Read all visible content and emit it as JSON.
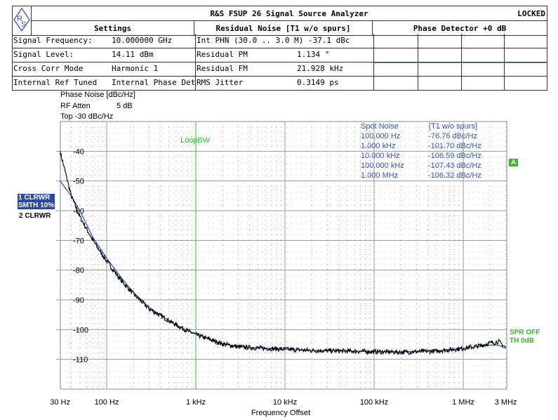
{
  "header": {
    "title": "R&S FSUP 26 Signal Source Analyzer",
    "status": "LOCKED",
    "logo": "R&S",
    "settings_title": "Settings",
    "residual_title": "Residual Noise [T1 w/o spurs]",
    "phase_title": "Phase Detector +0 dB",
    "rows": [
      {
        "label": "Signal Frequency:",
        "value": "10.000000 GHz",
        "rlabel": "Int PHN (30.0  .. 3.0 M)  -37.1 dBc",
        "rvalue": ""
      },
      {
        "label": "Signal Level:",
        "value": "14.11 dBm",
        "rlabel": "Residual PM",
        "rvalue": "1.134 °"
      },
      {
        "label": "Cross Corr Mode",
        "value": "Harmonic 1",
        "rlabel": "Residual FM",
        "rvalue": "21.928 kHz"
      },
      {
        "label": "Internal Ref Tuned",
        "value": "Internal Phase Det",
        "rlabel": "RMS Jitter",
        "rvalue": "0.3149 ps"
      }
    ]
  },
  "info": {
    "unit": "Phase Noise [dBc/Hz]",
    "rf_atten_label": "RF Atten",
    "rf_atten": "5 dB",
    "top": "Top  -30 dBc/Hz"
  },
  "traces": {
    "t1": "1 CLRWR",
    "t1b": "SMTH 10%",
    "t2": "2 CLRWR"
  },
  "flags": {
    "a": "A",
    "spr": "SPR OFF",
    "th": "TH 0dB"
  },
  "spot": {
    "title": "Spot Noise",
    "title2": "[T1 w/o spurs]",
    "rows": [
      {
        "f": "100.000 Hz",
        "v": "-76.76 dBc/Hz"
      },
      {
        "f": "1.000 kHz",
        "v": "-101.70 dBc/Hz"
      },
      {
        "f": "10.000 kHz",
        "v": "-106.59 dBc/Hz"
      },
      {
        "f": "100.000 kHz",
        "v": "-107.43 dBc/Hz"
      },
      {
        "f": "1.000 MHz",
        "v": "-106.32 dBc/Hz"
      }
    ]
  },
  "chart_data": {
    "type": "line",
    "xscale": "log",
    "xlabel": "Frequency Offset",
    "ylabel": "Phase Noise [dBc/Hz]",
    "xlim": [
      30,
      3000000
    ],
    "ylim": [
      -120,
      -30
    ],
    "grid": true,
    "xticks": [
      {
        "v": 30,
        "l": "30 Hz"
      },
      {
        "v": 100,
        "l": "100 Hz"
      },
      {
        "v": 1000,
        "l": "1 kHz"
      },
      {
        "v": 10000,
        "l": "10 kHz"
      },
      {
        "v": 100000,
        "l": "100 kHz"
      },
      {
        "v": 1000000,
        "l": "1 MHz"
      },
      {
        "v": 3000000,
        "l": "3 MHz"
      }
    ],
    "yticks": [
      -40,
      -50,
      -60,
      -70,
      -80,
      -90,
      -100,
      -110
    ],
    "marker_line": {
      "x": 1000,
      "label": "LoopBW",
      "color": "#33bb33"
    },
    "series": [
      {
        "color": "#000000",
        "x": [
          30,
          40,
          50,
          70,
          100,
          150,
          200,
          300,
          500,
          700,
          1000,
          1500,
          2000,
          3000,
          5000,
          10000,
          20000,
          50000,
          100000,
          200000,
          500000,
          1000000,
          1500000,
          2000000,
          2500000,
          3000000
        ],
        "y": [
          -40,
          -55,
          -62,
          -70,
          -77,
          -84,
          -88,
          -93,
          -97,
          -99.5,
          -101.7,
          -103.5,
          -104.8,
          -105.8,
          -106.2,
          -106.6,
          -107,
          -107.2,
          -107.4,
          -107.6,
          -107.2,
          -106.3,
          -105.5,
          -104.5,
          -104,
          -106
        ]
      },
      {
        "color": "#3355bb",
        "x": [
          30,
          40,
          50,
          70,
          100,
          150,
          200,
          300,
          500,
          700,
          1000,
          1500,
          2000,
          3000,
          5000,
          10000,
          20000,
          50000,
          100000,
          200000,
          500000,
          1000000,
          1500000,
          2000000,
          2500000,
          3000000
        ],
        "y": [
          -50,
          -55,
          -60,
          -69,
          -76,
          -83,
          -87.5,
          -92.5,
          -97,
          -99.5,
          -101.5,
          -103.5,
          -104.8,
          -105.7,
          -106.2,
          -106.6,
          -107,
          -107.2,
          -107.4,
          -107.5,
          -107.1,
          -106.3,
          -105.7,
          -105.2,
          -105.2,
          -106.3
        ]
      }
    ]
  }
}
